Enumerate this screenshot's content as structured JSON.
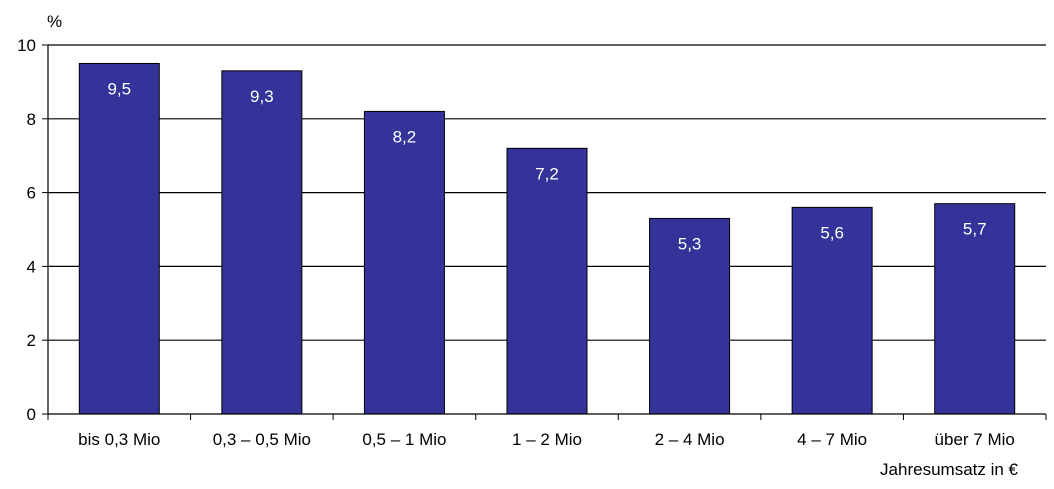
{
  "chart_data": {
    "type": "bar",
    "title": "",
    "ylabel": "%",
    "xlabel": "Jahresumsatz in €",
    "ylim": [
      0,
      10
    ],
    "yticks": [
      0,
      2,
      4,
      6,
      8,
      10
    ],
    "grid": true,
    "categories": [
      "bis 0,3 Mio",
      "0,3 – 0,5 Mio",
      "0,5 – 1 Mio",
      "1 – 2 Mio",
      "2 – 4 Mio",
      "4 – 7 Mio",
      "über 7 Mio"
    ],
    "values": [
      9.5,
      9.3,
      8.2,
      7.2,
      5.3,
      5.6,
      5.7
    ],
    "value_labels": [
      "9,5",
      "9,3",
      "8,2",
      "7,2",
      "5,3",
      "5,6",
      "5,7"
    ],
    "bar_color": "#333399",
    "label_color": "#ffffff"
  }
}
